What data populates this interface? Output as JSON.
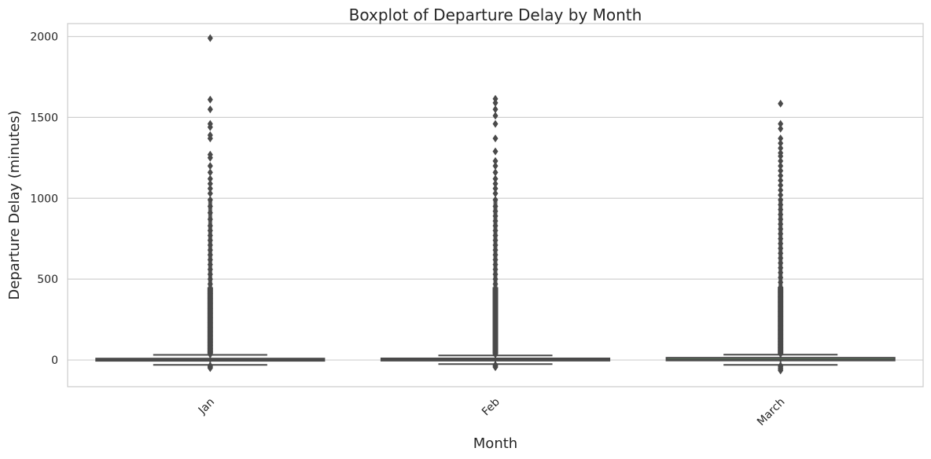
{
  "chart_data": {
    "type": "box",
    "title": "Boxplot of Departure Delay by Month",
    "xlabel": "Month",
    "ylabel": "Departure Delay (minutes)",
    "categories": [
      "Jan",
      "Feb",
      "March"
    ],
    "yticks": [
      0,
      500,
      1000,
      1500,
      2000
    ],
    "ylim": [
      -165,
      2080
    ],
    "grid": "horizontal",
    "colors": {
      "box_fill": [
        "#5a7fae",
        "#d18a5c",
        "#6c9e6b"
      ],
      "line": "#4a4a4a",
      "grid": "#d0d0d0",
      "frame": "#cccccc",
      "text": "#262626"
    },
    "boxes": [
      {
        "category": "Jan",
        "whisker_low": -30,
        "q1": -5,
        "median": 0,
        "q3": 9,
        "whisker_high": 32,
        "outliers_high": [
          35,
          50,
          70,
          90,
          110,
          130,
          150,
          175,
          200,
          230,
          260,
          290,
          320,
          350,
          380,
          410,
          440,
          470,
          500,
          530,
          560,
          590,
          620,
          650,
          680,
          710,
          740,
          770,
          800,
          830,
          870,
          910,
          950,
          990,
          1030,
          1060,
          1090,
          1120,
          1160,
          1200,
          1250,
          1270,
          1370,
          1390,
          1440,
          1460,
          1550,
          1610,
          1990
        ],
        "outliers_low": [
          -35,
          -40,
          -45,
          -50
        ]
      },
      {
        "category": "Feb",
        "whisker_low": -25,
        "q1": -4,
        "median": 0,
        "q3": 10,
        "whisker_high": 28,
        "outliers_high": [
          35,
          50,
          70,
          90,
          110,
          130,
          150,
          175,
          200,
          230,
          260,
          290,
          320,
          350,
          380,
          410,
          440,
          470,
          500,
          530,
          560,
          590,
          620,
          650,
          680,
          710,
          740,
          770,
          800,
          830,
          860,
          890,
          920,
          950,
          990,
          1030,
          1060,
          1090,
          1120,
          1160,
          1200,
          1230,
          1290,
          1370,
          1460,
          1510,
          1550,
          1590,
          1615
        ],
        "outliers_low": [
          -30,
          -35,
          -40,
          -45
        ]
      },
      {
        "category": "March",
        "whisker_low": -30,
        "q1": -3,
        "median": 2,
        "q3": 14,
        "whisker_high": 33,
        "outliers_high": [
          38,
          55,
          75,
          95,
          115,
          135,
          160,
          185,
          210,
          240,
          270,
          300,
          330,
          360,
          390,
          420,
          450,
          480,
          510,
          540,
          570,
          600,
          630,
          660,
          690,
          720,
          750,
          780,
          810,
          840,
          870,
          900,
          930,
          960,
          990,
          1020,
          1050,
          1080,
          1110,
          1140,
          1170,
          1200,
          1230,
          1260,
          1280,
          1310,
          1340,
          1370,
          1430,
          1460,
          1585
        ],
        "outliers_low": [
          -35,
          -42,
          -50,
          -58,
          -65
        ]
      }
    ]
  }
}
